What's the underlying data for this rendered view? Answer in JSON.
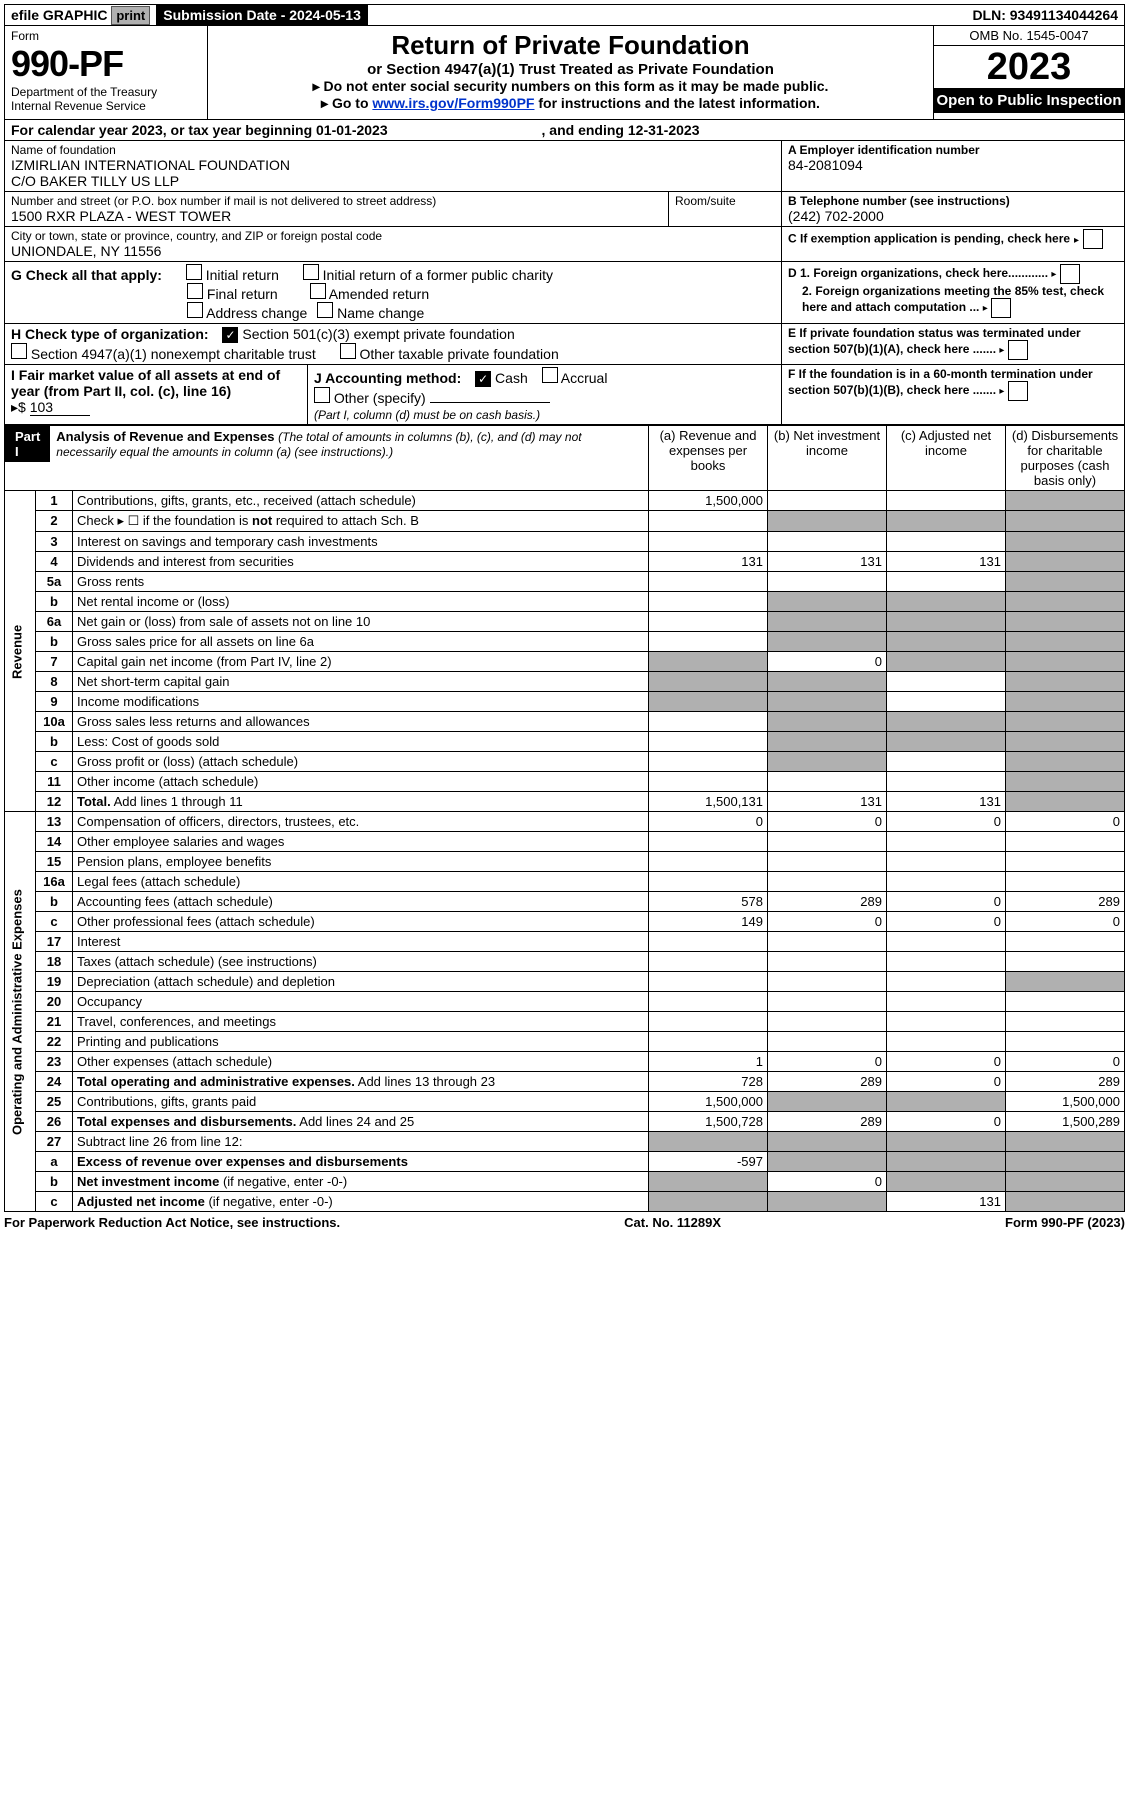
{
  "topbar": {
    "efile": "efile GRAPHIC",
    "print": "print",
    "sub_label": "Submission Date - 2024-05-13",
    "dln": "DLN: 93491134044264"
  },
  "header": {
    "form_word": "Form",
    "form_num": "990-PF",
    "dept": "Department of the Treasury",
    "irs": "Internal Revenue Service",
    "title": "Return of Private Foundation",
    "subtitle": "or Section 4947(a)(1) Trust Treated as Private Foundation",
    "line1": "Do not enter social security numbers on this form as it may be made public.",
    "line2_pre": "Go to ",
    "line2_link": "www.irs.gov/Form990PF",
    "line2_post": " for instructions and the latest information.",
    "omb": "OMB No. 1545-0047",
    "year": "2023",
    "open": "Open to Public Inspection"
  },
  "cal": {
    "text_pre": "For calendar year 2023, or tax year beginning ",
    "begin": "01-01-2023",
    "text_mid": " , and ending ",
    "end": "12-31-2023"
  },
  "entity": {
    "name_label": "Name of foundation",
    "name1": "IZMIRLIAN INTERNATIONAL FOUNDATION",
    "name2": "C/O BAKER TILLY US LLP",
    "addr_label": "Number and street (or P.O. box number if mail is not delivered to street address)",
    "addr": "1500 RXR PLAZA - WEST TOWER",
    "room_label": "Room/suite",
    "city_label": "City or town, state or province, country, and ZIP or foreign postal code",
    "city": "UNIONDALE, NY  11556",
    "ein_label": "A Employer identification number",
    "ein": "84-2081094",
    "tel_label": "B Telephone number (see instructions)",
    "tel": "(242) 702-2000",
    "c_label": "C If exemption application is pending, check here"
  },
  "g": {
    "label": "G Check all that apply:",
    "opts": [
      "Initial return",
      "Final return",
      "Address change",
      "Initial return of a former public charity",
      "Amended return",
      "Name change"
    ]
  },
  "h": {
    "label": "H Check type of organization:",
    "o1": "Section 501(c)(3) exempt private foundation",
    "o2": "Section 4947(a)(1) nonexempt charitable trust",
    "o3": "Other taxable private foundation"
  },
  "d": {
    "d1": "D 1. Foreign organizations, check here............",
    "d2": "2. Foreign organizations meeting the 85% test, check here and attach computation ..."
  },
  "e_label": "E  If private foundation status was terminated under section 507(b)(1)(A), check here .......",
  "f_label": "F  If the foundation is in a 60-month termination under section 507(b)(1)(B), check here .......",
  "i": {
    "label": "I Fair market value of all assets at end of year (from Part II, col. (c), line 16)",
    "prefix": "▸$",
    "value": "103"
  },
  "j": {
    "label": "J Accounting method:",
    "cash": "Cash",
    "accrual": "Accrual",
    "other": "Other (specify)",
    "note": "(Part I, column (d) must be on cash basis.)"
  },
  "part1": {
    "label": "Part I",
    "title": "Analysis of Revenue and Expenses",
    "title_note": "(The total of amounts in columns (b), (c), and (d) may not necessarily equal the amounts in column (a) (see instructions).)",
    "col_a": "(a)   Revenue and expenses per books",
    "col_b": "(b)   Net investment income",
    "col_c": "(c)   Adjusted net income",
    "col_d": "(d)   Disbursements for charitable purposes (cash basis only)"
  },
  "side_rev": "Revenue",
  "side_exp": "Operating and Administrative Expenses",
  "rows": [
    {
      "n": "1",
      "d": "Contributions, gifts, grants, etc., received (attach schedule)",
      "a": "1,500,000",
      "b": "",
      "c": "",
      "dcol": "",
      "bgrey": false,
      "cgrey": false,
      "dgrey": true
    },
    {
      "n": "2",
      "d": "Check ▸ ☐ if the foundation is <b>not</b> required to attach Sch. B",
      "a": "",
      "b": "",
      "c": "",
      "dcol": "",
      "bgrey": true,
      "cgrey": true,
      "dgrey": true
    },
    {
      "n": "3",
      "d": "Interest on savings and temporary cash investments",
      "a": "",
      "b": "",
      "c": "",
      "dcol": "",
      "bgrey": false,
      "cgrey": false,
      "dgrey": true
    },
    {
      "n": "4",
      "d": "Dividends and interest from securities",
      "a": "131",
      "b": "131",
      "c": "131",
      "dcol": "",
      "bgrey": false,
      "cgrey": false,
      "dgrey": true
    },
    {
      "n": "5a",
      "d": "Gross rents",
      "a": "",
      "b": "",
      "c": "",
      "dcol": "",
      "bgrey": false,
      "cgrey": false,
      "dgrey": true
    },
    {
      "n": "b",
      "d": "Net rental income or (loss)",
      "a": "",
      "b": "",
      "c": "",
      "dcol": "",
      "bgrey": true,
      "cgrey": true,
      "dgrey": true
    },
    {
      "n": "6a",
      "d": "Net gain or (loss) from sale of assets not on line 10",
      "a": "",
      "b": "",
      "c": "",
      "dcol": "",
      "bgrey": true,
      "cgrey": true,
      "dgrey": true
    },
    {
      "n": "b",
      "d": "Gross sales price for all assets on line 6a",
      "a": "",
      "b": "",
      "c": "",
      "dcol": "",
      "bgrey": true,
      "cgrey": true,
      "dgrey": true
    },
    {
      "n": "7",
      "d": "Capital gain net income (from Part IV, line 2)",
      "a": "",
      "b": "0",
      "c": "",
      "dcol": "",
      "agrey": true,
      "bgrey": false,
      "cgrey": true,
      "dgrey": true
    },
    {
      "n": "8",
      "d": "Net short-term capital gain",
      "a": "",
      "b": "",
      "c": "",
      "dcol": "",
      "agrey": true,
      "bgrey": true,
      "cgrey": false,
      "dgrey": true
    },
    {
      "n": "9",
      "d": "Income modifications",
      "a": "",
      "b": "",
      "c": "",
      "dcol": "",
      "agrey": true,
      "bgrey": true,
      "cgrey": false,
      "dgrey": true
    },
    {
      "n": "10a",
      "d": "Gross sales less returns and allowances",
      "a": "",
      "b": "",
      "c": "",
      "dcol": "",
      "bgrey": true,
      "cgrey": true,
      "dgrey": true
    },
    {
      "n": "b",
      "d": "Less: Cost of goods sold",
      "a": "",
      "b": "",
      "c": "",
      "dcol": "",
      "bgrey": true,
      "cgrey": true,
      "dgrey": true
    },
    {
      "n": "c",
      "d": "Gross profit or (loss) (attach schedule)",
      "a": "",
      "b": "",
      "c": "",
      "dcol": "",
      "bgrey": true,
      "cgrey": false,
      "dgrey": true
    },
    {
      "n": "11",
      "d": "Other income (attach schedule)",
      "a": "",
      "b": "",
      "c": "",
      "dcol": "",
      "bgrey": false,
      "cgrey": false,
      "dgrey": true
    },
    {
      "n": "12",
      "d": "<b>Total.</b> Add lines 1 through 11",
      "a": "1,500,131",
      "b": "131",
      "c": "131",
      "dcol": "",
      "bgrey": false,
      "cgrey": false,
      "dgrey": true
    },
    {
      "n": "13",
      "d": "Compensation of officers, directors, trustees, etc.",
      "a": "0",
      "b": "0",
      "c": "0",
      "dcol": "0"
    },
    {
      "n": "14",
      "d": "Other employee salaries and wages",
      "a": "",
      "b": "",
      "c": "",
      "dcol": ""
    },
    {
      "n": "15",
      "d": "Pension plans, employee benefits",
      "a": "",
      "b": "",
      "c": "",
      "dcol": ""
    },
    {
      "n": "16a",
      "d": "Legal fees (attach schedule)",
      "a": "",
      "b": "",
      "c": "",
      "dcol": ""
    },
    {
      "n": "b",
      "d": "Accounting fees (attach schedule)",
      "a": "578",
      "b": "289",
      "c": "0",
      "dcol": "289"
    },
    {
      "n": "c",
      "d": "Other professional fees (attach schedule)",
      "a": "149",
      "b": "0",
      "c": "0",
      "dcol": "0"
    },
    {
      "n": "17",
      "d": "Interest",
      "a": "",
      "b": "",
      "c": "",
      "dcol": ""
    },
    {
      "n": "18",
      "d": "Taxes (attach schedule) (see instructions)",
      "a": "",
      "b": "",
      "c": "",
      "dcol": ""
    },
    {
      "n": "19",
      "d": "Depreciation (attach schedule) and depletion",
      "a": "",
      "b": "",
      "c": "",
      "dcol": "",
      "dgrey": true
    },
    {
      "n": "20",
      "d": "Occupancy",
      "a": "",
      "b": "",
      "c": "",
      "dcol": ""
    },
    {
      "n": "21",
      "d": "Travel, conferences, and meetings",
      "a": "",
      "b": "",
      "c": "",
      "dcol": ""
    },
    {
      "n": "22",
      "d": "Printing and publications",
      "a": "",
      "b": "",
      "c": "",
      "dcol": ""
    },
    {
      "n": "23",
      "d": "Other expenses (attach schedule)",
      "a": "1",
      "b": "0",
      "c": "0",
      "dcol": "0"
    },
    {
      "n": "24",
      "d": "<b>Total operating and administrative expenses.</b> Add lines 13 through 23",
      "a": "728",
      "b": "289",
      "c": "0",
      "dcol": "289"
    },
    {
      "n": "25",
      "d": "Contributions, gifts, grants paid",
      "a": "1,500,000",
      "b": "",
      "c": "",
      "dcol": "1,500,000",
      "bgrey": true,
      "cgrey": true
    },
    {
      "n": "26",
      "d": "<b>Total expenses and disbursements.</b> Add lines 24 and 25",
      "a": "1,500,728",
      "b": "289",
      "c": "0",
      "dcol": "1,500,289"
    },
    {
      "n": "27",
      "d": "Subtract line 26 from line 12:",
      "a": "",
      "b": "",
      "c": "",
      "dcol": "",
      "agrey": true,
      "bgrey": true,
      "cgrey": true,
      "dgrey": true
    },
    {
      "n": "a",
      "d": "<b>Excess of revenue over expenses and disbursements</b>",
      "a": "-597",
      "b": "",
      "c": "",
      "dcol": "",
      "bgrey": true,
      "cgrey": true,
      "dgrey": true
    },
    {
      "n": "b",
      "d": "<b>Net investment income</b> (if negative, enter -0-)",
      "a": "",
      "b": "0",
      "c": "",
      "dcol": "",
      "agrey": true,
      "cgrey": true,
      "dgrey": true
    },
    {
      "n": "c",
      "d": "<b>Adjusted net income</b> (if negative, enter -0-)",
      "a": "",
      "b": "",
      "c": "131",
      "dcol": "",
      "agrey": true,
      "bgrey": true,
      "dgrey": true
    }
  ],
  "footer": {
    "left": "For Paperwork Reduction Act Notice, see instructions.",
    "mid": "Cat. No. 11289X",
    "right": "Form 990-PF (2023)"
  }
}
